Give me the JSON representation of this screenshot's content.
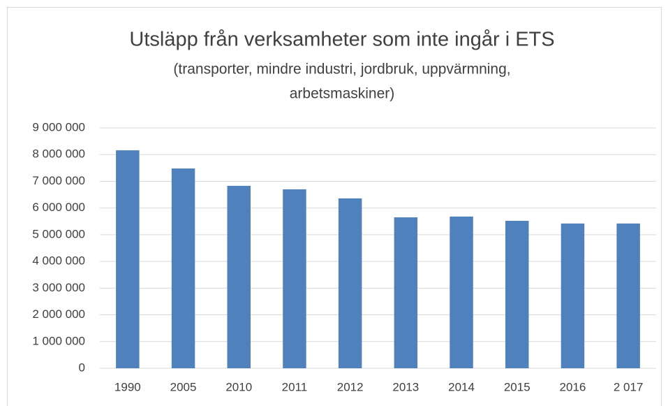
{
  "chart_data": {
    "type": "bar",
    "title": "Utsläpp från verksamheter som inte ingår i ETS",
    "subtitle": [
      "(transporter, mindre industri, jordbruk, uppvärmning,",
      "arbetsmaskiner)"
    ],
    "categories": [
      "1990",
      "2005",
      "2010",
      "2011",
      "2012",
      "2013",
      "2014",
      "2015",
      "2016",
      "2 017"
    ],
    "values": [
      8160000,
      7480000,
      6830000,
      6700000,
      6360000,
      5650000,
      5680000,
      5520000,
      5420000,
      5420000
    ],
    "color": "#4f81bd",
    "ylim": [
      0,
      9000000
    ],
    "yticks": [
      0,
      {
        "value": 1000000,
        "label": "1 000 000"
      },
      {
        "value": 2000000,
        "label": "2 000 000"
      },
      {
        "value": 3000000,
        "label": "3 000 000"
      },
      {
        "value": 4000000,
        "label": "4 000 000"
      },
      {
        "value": 5000000,
        "label": "5 000 000"
      },
      {
        "value": 6000000,
        "label": "6 000 000"
      },
      {
        "value": 7000000,
        "label": "7 000 000"
      },
      {
        "value": 8000000,
        "label": "8 000 000"
      },
      {
        "value": 9000000,
        "label": "9 000 000"
      }
    ],
    "grid": true
  }
}
